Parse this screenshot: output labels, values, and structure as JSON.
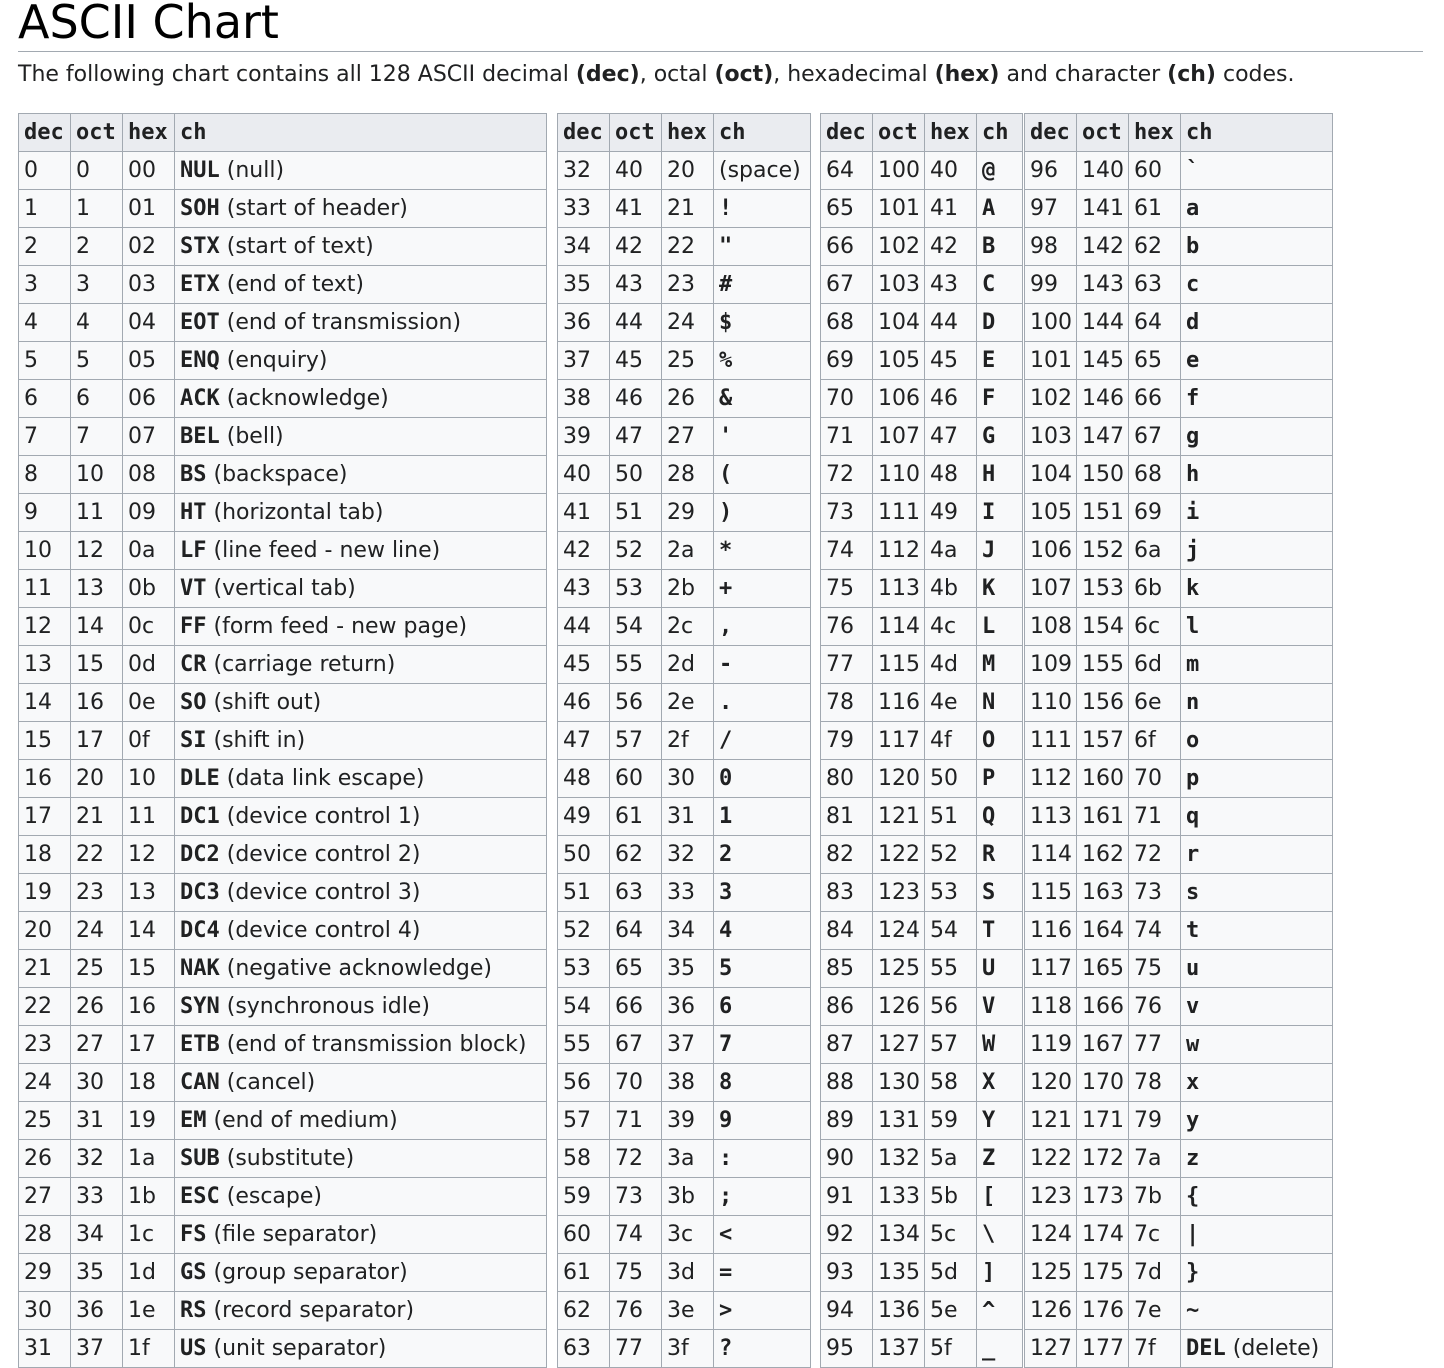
{
  "title": "ASCII Chart",
  "intro": {
    "part1": "The following chart contains all 128 ASCII decimal ",
    "dec": "(dec)",
    "part2": ", octal ",
    "oct": "(oct)",
    "part3": ", hexadecimal ",
    "hex": "(hex)",
    "part4": " and character ",
    "ch": "(ch)",
    "part5": " codes."
  },
  "headers": [
    "dec",
    "oct",
    "hex",
    "ch"
  ],
  "tables": [
    {
      "rows": [
        {
          "dec": "0",
          "oct": "0",
          "hex": "00",
          "code": "NUL",
          "desc": " (null)"
        },
        {
          "dec": "1",
          "oct": "1",
          "hex": "01",
          "code": "SOH",
          "desc": " (start of header)"
        },
        {
          "dec": "2",
          "oct": "2",
          "hex": "02",
          "code": "STX",
          "desc": " (start of text)"
        },
        {
          "dec": "3",
          "oct": "3",
          "hex": "03",
          "code": "ETX",
          "desc": " (end of text)"
        },
        {
          "dec": "4",
          "oct": "4",
          "hex": "04",
          "code": "EOT",
          "desc": " (end of transmission)"
        },
        {
          "dec": "5",
          "oct": "5",
          "hex": "05",
          "code": "ENQ",
          "desc": " (enquiry)"
        },
        {
          "dec": "6",
          "oct": "6",
          "hex": "06",
          "code": "ACK",
          "desc": " (acknowledge)"
        },
        {
          "dec": "7",
          "oct": "7",
          "hex": "07",
          "code": "BEL",
          "desc": " (bell)"
        },
        {
          "dec": "8",
          "oct": "10",
          "hex": "08",
          "code": "BS",
          "desc": " (backspace)"
        },
        {
          "dec": "9",
          "oct": "11",
          "hex": "09",
          "code": "HT",
          "desc": " (horizontal tab)"
        },
        {
          "dec": "10",
          "oct": "12",
          "hex": "0a",
          "code": "LF",
          "desc": " (line feed - new line)"
        },
        {
          "dec": "11",
          "oct": "13",
          "hex": "0b",
          "code": "VT",
          "desc": " (vertical tab)"
        },
        {
          "dec": "12",
          "oct": "14",
          "hex": "0c",
          "code": "FF",
          "desc": " (form feed - new page)"
        },
        {
          "dec": "13",
          "oct": "15",
          "hex": "0d",
          "code": "CR",
          "desc": " (carriage return)"
        },
        {
          "dec": "14",
          "oct": "16",
          "hex": "0e",
          "code": "SO",
          "desc": " (shift out)"
        },
        {
          "dec": "15",
          "oct": "17",
          "hex": "0f",
          "code": "SI",
          "desc": " (shift in)"
        },
        {
          "dec": "16",
          "oct": "20",
          "hex": "10",
          "code": "DLE",
          "desc": " (data link escape)"
        },
        {
          "dec": "17",
          "oct": "21",
          "hex": "11",
          "code": "DC1",
          "desc": " (device control 1)"
        },
        {
          "dec": "18",
          "oct": "22",
          "hex": "12",
          "code": "DC2",
          "desc": " (device control 2)"
        },
        {
          "dec": "19",
          "oct": "23",
          "hex": "13",
          "code": "DC3",
          "desc": " (device control 3)"
        },
        {
          "dec": "20",
          "oct": "24",
          "hex": "14",
          "code": "DC4",
          "desc": " (device control 4)"
        },
        {
          "dec": "21",
          "oct": "25",
          "hex": "15",
          "code": "NAK",
          "desc": " (negative acknowledge)"
        },
        {
          "dec": "22",
          "oct": "26",
          "hex": "16",
          "code": "SYN",
          "desc": " (synchronous idle)"
        },
        {
          "dec": "23",
          "oct": "27",
          "hex": "17",
          "code": "ETB",
          "desc": " (end of transmission block)"
        },
        {
          "dec": "24",
          "oct": "30",
          "hex": "18",
          "code": "CAN",
          "desc": " (cancel)"
        },
        {
          "dec": "25",
          "oct": "31",
          "hex": "19",
          "code": "EM",
          "desc": " (end of medium)"
        },
        {
          "dec": "26",
          "oct": "32",
          "hex": "1a",
          "code": "SUB",
          "desc": " (substitute)"
        },
        {
          "dec": "27",
          "oct": "33",
          "hex": "1b",
          "code": "ESC",
          "desc": " (escape)"
        },
        {
          "dec": "28",
          "oct": "34",
          "hex": "1c",
          "code": "FS",
          "desc": " (file separator)"
        },
        {
          "dec": "29",
          "oct": "35",
          "hex": "1d",
          "code": "GS",
          "desc": " (group separator)"
        },
        {
          "dec": "30",
          "oct": "36",
          "hex": "1e",
          "code": "RS",
          "desc": " (record separator)"
        },
        {
          "dec": "31",
          "oct": "37",
          "hex": "1f",
          "code": "US",
          "desc": " (unit separator)"
        }
      ]
    },
    {
      "rows": [
        {
          "dec": "32",
          "oct": "40",
          "hex": "20",
          "code": "",
          "desc": "(space)"
        },
        {
          "dec": "33",
          "oct": "41",
          "hex": "21",
          "code": "!",
          "desc": ""
        },
        {
          "dec": "34",
          "oct": "42",
          "hex": "22",
          "code": "\"",
          "desc": ""
        },
        {
          "dec": "35",
          "oct": "43",
          "hex": "23",
          "code": "#",
          "desc": ""
        },
        {
          "dec": "36",
          "oct": "44",
          "hex": "24",
          "code": "$",
          "desc": ""
        },
        {
          "dec": "37",
          "oct": "45",
          "hex": "25",
          "code": "%",
          "desc": ""
        },
        {
          "dec": "38",
          "oct": "46",
          "hex": "26",
          "code": "&",
          "desc": ""
        },
        {
          "dec": "39",
          "oct": "47",
          "hex": "27",
          "code": "'",
          "desc": ""
        },
        {
          "dec": "40",
          "oct": "50",
          "hex": "28",
          "code": "(",
          "desc": ""
        },
        {
          "dec": "41",
          "oct": "51",
          "hex": "29",
          "code": ")",
          "desc": ""
        },
        {
          "dec": "42",
          "oct": "52",
          "hex": "2a",
          "code": "*",
          "desc": ""
        },
        {
          "dec": "43",
          "oct": "53",
          "hex": "2b",
          "code": "+",
          "desc": ""
        },
        {
          "dec": "44",
          "oct": "54",
          "hex": "2c",
          "code": ",",
          "desc": ""
        },
        {
          "dec": "45",
          "oct": "55",
          "hex": "2d",
          "code": "-",
          "desc": ""
        },
        {
          "dec": "46",
          "oct": "56",
          "hex": "2e",
          "code": ".",
          "desc": ""
        },
        {
          "dec": "47",
          "oct": "57",
          "hex": "2f",
          "code": "/",
          "desc": ""
        },
        {
          "dec": "48",
          "oct": "60",
          "hex": "30",
          "code": "0",
          "desc": ""
        },
        {
          "dec": "49",
          "oct": "61",
          "hex": "31",
          "code": "1",
          "desc": ""
        },
        {
          "dec": "50",
          "oct": "62",
          "hex": "32",
          "code": "2",
          "desc": ""
        },
        {
          "dec": "51",
          "oct": "63",
          "hex": "33",
          "code": "3",
          "desc": ""
        },
        {
          "dec": "52",
          "oct": "64",
          "hex": "34",
          "code": "4",
          "desc": ""
        },
        {
          "dec": "53",
          "oct": "65",
          "hex": "35",
          "code": "5",
          "desc": ""
        },
        {
          "dec": "54",
          "oct": "66",
          "hex": "36",
          "code": "6",
          "desc": ""
        },
        {
          "dec": "55",
          "oct": "67",
          "hex": "37",
          "code": "7",
          "desc": ""
        },
        {
          "dec": "56",
          "oct": "70",
          "hex": "38",
          "code": "8",
          "desc": ""
        },
        {
          "dec": "57",
          "oct": "71",
          "hex": "39",
          "code": "9",
          "desc": ""
        },
        {
          "dec": "58",
          "oct": "72",
          "hex": "3a",
          "code": ":",
          "desc": ""
        },
        {
          "dec": "59",
          "oct": "73",
          "hex": "3b",
          "code": ";",
          "desc": ""
        },
        {
          "dec": "60",
          "oct": "74",
          "hex": "3c",
          "code": "<",
          "desc": ""
        },
        {
          "dec": "61",
          "oct": "75",
          "hex": "3d",
          "code": "=",
          "desc": ""
        },
        {
          "dec": "62",
          "oct": "76",
          "hex": "3e",
          "code": ">",
          "desc": ""
        },
        {
          "dec": "63",
          "oct": "77",
          "hex": "3f",
          "code": "?",
          "desc": ""
        }
      ]
    },
    {
      "rows": [
        {
          "dec": "64",
          "oct": "100",
          "hex": "40",
          "code": "@",
          "desc": ""
        },
        {
          "dec": "65",
          "oct": "101",
          "hex": "41",
          "code": "A",
          "desc": ""
        },
        {
          "dec": "66",
          "oct": "102",
          "hex": "42",
          "code": "B",
          "desc": ""
        },
        {
          "dec": "67",
          "oct": "103",
          "hex": "43",
          "code": "C",
          "desc": ""
        },
        {
          "dec": "68",
          "oct": "104",
          "hex": "44",
          "code": "D",
          "desc": ""
        },
        {
          "dec": "69",
          "oct": "105",
          "hex": "45",
          "code": "E",
          "desc": ""
        },
        {
          "dec": "70",
          "oct": "106",
          "hex": "46",
          "code": "F",
          "desc": ""
        },
        {
          "dec": "71",
          "oct": "107",
          "hex": "47",
          "code": "G",
          "desc": ""
        },
        {
          "dec": "72",
          "oct": "110",
          "hex": "48",
          "code": "H",
          "desc": ""
        },
        {
          "dec": "73",
          "oct": "111",
          "hex": "49",
          "code": "I",
          "desc": ""
        },
        {
          "dec": "74",
          "oct": "112",
          "hex": "4a",
          "code": "J",
          "desc": ""
        },
        {
          "dec": "75",
          "oct": "113",
          "hex": "4b",
          "code": "K",
          "desc": ""
        },
        {
          "dec": "76",
          "oct": "114",
          "hex": "4c",
          "code": "L",
          "desc": ""
        },
        {
          "dec": "77",
          "oct": "115",
          "hex": "4d",
          "code": "M",
          "desc": ""
        },
        {
          "dec": "78",
          "oct": "116",
          "hex": "4e",
          "code": "N",
          "desc": ""
        },
        {
          "dec": "79",
          "oct": "117",
          "hex": "4f",
          "code": "O",
          "desc": ""
        },
        {
          "dec": "80",
          "oct": "120",
          "hex": "50",
          "code": "P",
          "desc": ""
        },
        {
          "dec": "81",
          "oct": "121",
          "hex": "51",
          "code": "Q",
          "desc": ""
        },
        {
          "dec": "82",
          "oct": "122",
          "hex": "52",
          "code": "R",
          "desc": ""
        },
        {
          "dec": "83",
          "oct": "123",
          "hex": "53",
          "code": "S",
          "desc": ""
        },
        {
          "dec": "84",
          "oct": "124",
          "hex": "54",
          "code": "T",
          "desc": ""
        },
        {
          "dec": "85",
          "oct": "125",
          "hex": "55",
          "code": "U",
          "desc": ""
        },
        {
          "dec": "86",
          "oct": "126",
          "hex": "56",
          "code": "V",
          "desc": ""
        },
        {
          "dec": "87",
          "oct": "127",
          "hex": "57",
          "code": "W",
          "desc": ""
        },
        {
          "dec": "88",
          "oct": "130",
          "hex": "58",
          "code": "X",
          "desc": ""
        },
        {
          "dec": "89",
          "oct": "131",
          "hex": "59",
          "code": "Y",
          "desc": ""
        },
        {
          "dec": "90",
          "oct": "132",
          "hex": "5a",
          "code": "Z",
          "desc": ""
        },
        {
          "dec": "91",
          "oct": "133",
          "hex": "5b",
          "code": "[",
          "desc": ""
        },
        {
          "dec": "92",
          "oct": "134",
          "hex": "5c",
          "code": "\\",
          "desc": ""
        },
        {
          "dec": "93",
          "oct": "135",
          "hex": "5d",
          "code": "]",
          "desc": ""
        },
        {
          "dec": "94",
          "oct": "136",
          "hex": "5e",
          "code": "^",
          "desc": ""
        },
        {
          "dec": "95",
          "oct": "137",
          "hex": "5f",
          "code": "_",
          "desc": ""
        }
      ]
    },
    {
      "rows": [
        {
          "dec": "96",
          "oct": "140",
          "hex": "60",
          "code": "`",
          "desc": ""
        },
        {
          "dec": "97",
          "oct": "141",
          "hex": "61",
          "code": "a",
          "desc": ""
        },
        {
          "dec": "98",
          "oct": "142",
          "hex": "62",
          "code": "b",
          "desc": ""
        },
        {
          "dec": "99",
          "oct": "143",
          "hex": "63",
          "code": "c",
          "desc": ""
        },
        {
          "dec": "100",
          "oct": "144",
          "hex": "64",
          "code": "d",
          "desc": ""
        },
        {
          "dec": "101",
          "oct": "145",
          "hex": "65",
          "code": "e",
          "desc": ""
        },
        {
          "dec": "102",
          "oct": "146",
          "hex": "66",
          "code": "f",
          "desc": ""
        },
        {
          "dec": "103",
          "oct": "147",
          "hex": "67",
          "code": "g",
          "desc": ""
        },
        {
          "dec": "104",
          "oct": "150",
          "hex": "68",
          "code": "h",
          "desc": ""
        },
        {
          "dec": "105",
          "oct": "151",
          "hex": "69",
          "code": "i",
          "desc": ""
        },
        {
          "dec": "106",
          "oct": "152",
          "hex": "6a",
          "code": "j",
          "desc": ""
        },
        {
          "dec": "107",
          "oct": "153",
          "hex": "6b",
          "code": "k",
          "desc": ""
        },
        {
          "dec": "108",
          "oct": "154",
          "hex": "6c",
          "code": "l",
          "desc": ""
        },
        {
          "dec": "109",
          "oct": "155",
          "hex": "6d",
          "code": "m",
          "desc": ""
        },
        {
          "dec": "110",
          "oct": "156",
          "hex": "6e",
          "code": "n",
          "desc": ""
        },
        {
          "dec": "111",
          "oct": "157",
          "hex": "6f",
          "code": "o",
          "desc": ""
        },
        {
          "dec": "112",
          "oct": "160",
          "hex": "70",
          "code": "p",
          "desc": ""
        },
        {
          "dec": "113",
          "oct": "161",
          "hex": "71",
          "code": "q",
          "desc": ""
        },
        {
          "dec": "114",
          "oct": "162",
          "hex": "72",
          "code": "r",
          "desc": ""
        },
        {
          "dec": "115",
          "oct": "163",
          "hex": "73",
          "code": "s",
          "desc": ""
        },
        {
          "dec": "116",
          "oct": "164",
          "hex": "74",
          "code": "t",
          "desc": ""
        },
        {
          "dec": "117",
          "oct": "165",
          "hex": "75",
          "code": "u",
          "desc": ""
        },
        {
          "dec": "118",
          "oct": "166",
          "hex": "76",
          "code": "v",
          "desc": ""
        },
        {
          "dec": "119",
          "oct": "167",
          "hex": "77",
          "code": "w",
          "desc": ""
        },
        {
          "dec": "120",
          "oct": "170",
          "hex": "78",
          "code": "x",
          "desc": ""
        },
        {
          "dec": "121",
          "oct": "171",
          "hex": "79",
          "code": "y",
          "desc": ""
        },
        {
          "dec": "122",
          "oct": "172",
          "hex": "7a",
          "code": "z",
          "desc": ""
        },
        {
          "dec": "123",
          "oct": "173",
          "hex": "7b",
          "code": "{",
          "desc": ""
        },
        {
          "dec": "124",
          "oct": "174",
          "hex": "7c",
          "code": "|",
          "desc": ""
        },
        {
          "dec": "125",
          "oct": "175",
          "hex": "7d",
          "code": "}",
          "desc": ""
        },
        {
          "dec": "126",
          "oct": "176",
          "hex": "7e",
          "code": "~",
          "desc": ""
        },
        {
          "dec": "127",
          "oct": "177",
          "hex": "7f",
          "code": "DEL",
          "desc": " (delete)"
        }
      ]
    }
  ]
}
